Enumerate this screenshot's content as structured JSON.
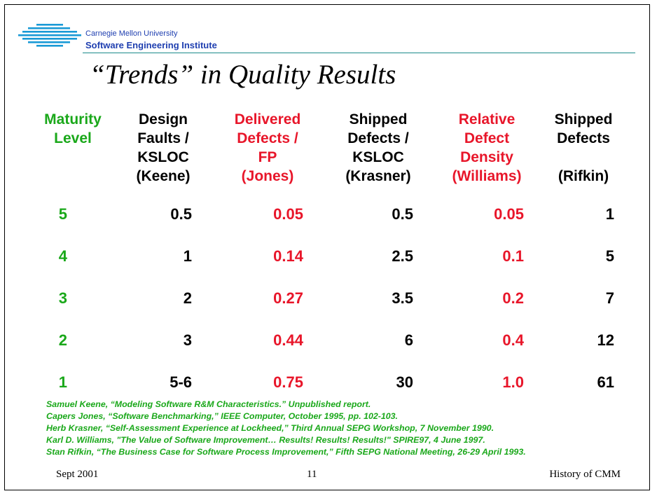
{
  "header": {
    "org_line1": "Carnegie Mellon University",
    "org_line2": "Software Engineering Institute"
  },
  "title": "“Trends” in Quality Results",
  "columns": [
    {
      "label": "Maturity\nLevel",
      "color": "#1aa81a"
    },
    {
      "label": "Design\nFaults /\nKSLOC\n(Keene)",
      "color": "#000000"
    },
    {
      "label": "Delivered\nDefects /\nFP\n(Jones)",
      "color": "#e8162a"
    },
    {
      "label": "Shipped\nDefects /\nKSLOC\n(Krasner)",
      "color": "#000000"
    },
    {
      "label": "Relative\nDefect\nDensity\n(Williams)",
      "color": "#e8162a"
    },
    {
      "label": "Shipped\nDefects\n\n(Rifkin)",
      "color": "#000000"
    }
  ],
  "rows": [
    [
      "5",
      "0.5",
      "0.05",
      "0.5",
      "0.05",
      "1"
    ],
    [
      "4",
      "1",
      "0.14",
      "2.5",
      "0.1",
      "5"
    ],
    [
      "3",
      "2",
      "0.27",
      "3.5",
      "0.2",
      "7"
    ],
    [
      "2",
      "3",
      "0.44",
      "6",
      "0.4",
      "12"
    ],
    [
      "1",
      "5-6",
      "0.75",
      "30",
      "1.0",
      "61"
    ]
  ],
  "references": [
    "Samuel Keene, “Modeling Software R&M Characteristics.”  Unpublished report.",
    "Capers Jones, “Software Benchmarking,” IEEE Computer, October 1995, pp. 102-103.",
    "Herb Krasner, “Self-Assessment Experience at Lockheed,” Third Annual SEPG Workshop, 7 November 1990.",
    "Karl D. Williams, \"The Value of Software Improvement… Results! Results! Results!\" SPIRE97, 4 June 1997.",
    "Stan Rifkin, “The Business Case for Software Process Improvement,” Fifth SEPG National Meeting, 26-29 April 1993."
  ],
  "footer": {
    "left": "Sept 2001",
    "center": "11",
    "right": "History of CMM"
  },
  "colors": {
    "green": "#1aa81a",
    "red": "#e8162a",
    "logo_blue": "#1f3fb0"
  }
}
